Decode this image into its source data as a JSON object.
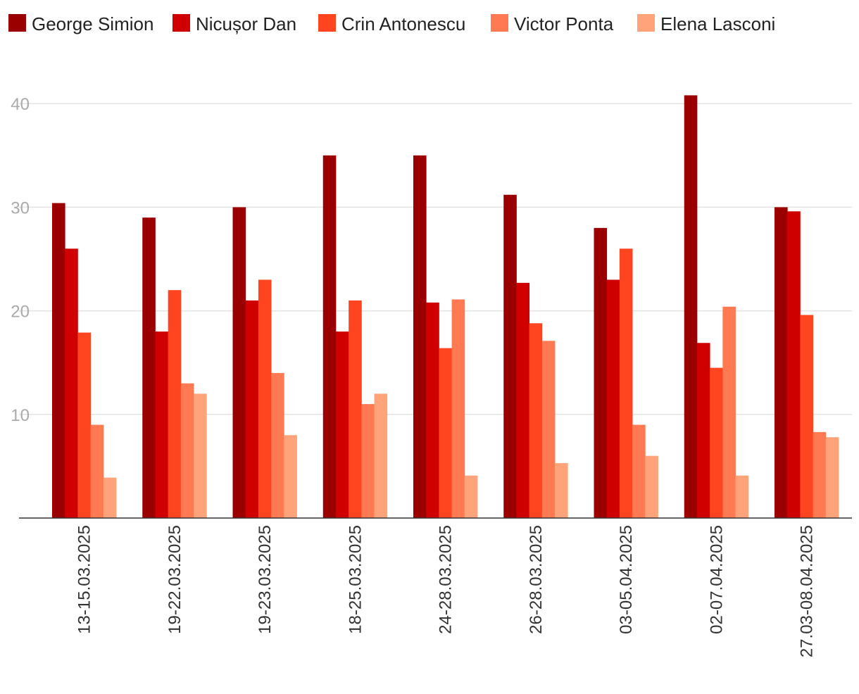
{
  "chart_data": {
    "type": "bar",
    "title": "",
    "xlabel": "",
    "ylabel": "",
    "ylim": [
      0,
      40.8
    ],
    "yticks": [
      10,
      20,
      30,
      40
    ],
    "grid": true,
    "legend_position": "top-left",
    "categories": [
      "13-15.03.2025",
      "19-22.03.2025",
      "19-23.03.2025",
      "18-25.03.2025",
      "24-28.03.2025",
      "26-28.03.2025",
      "03-05.04.2025",
      "02-07.04.2025",
      "27.03-08.04.2025"
    ],
    "series": [
      {
        "name": "George Simion",
        "color": "#9b0000",
        "values": [
          30.4,
          29,
          30,
          35,
          35,
          31.2,
          28,
          40.8,
          30
        ]
      },
      {
        "name": "Nicușor Dan",
        "color": "#d10000",
        "values": [
          26,
          18,
          21,
          18,
          20.8,
          22.7,
          23,
          16.9,
          29.6
        ]
      },
      {
        "name": "Crin Antonescu",
        "color": "#ff4520",
        "values": [
          17.9,
          22,
          23,
          21,
          16.4,
          18.8,
          26,
          14.5,
          19.6
        ]
      },
      {
        "name": "Victor Ponta",
        "color": "#ff7a52",
        "values": [
          9,
          13,
          14,
          11,
          21.1,
          17.1,
          9,
          20.4,
          8.3
        ]
      },
      {
        "name": "Elena Lasconi",
        "color": "#ffa47a",
        "values": [
          3.9,
          12,
          8,
          12,
          4.1,
          5.3,
          6,
          4.1,
          7.8
        ]
      }
    ]
  }
}
